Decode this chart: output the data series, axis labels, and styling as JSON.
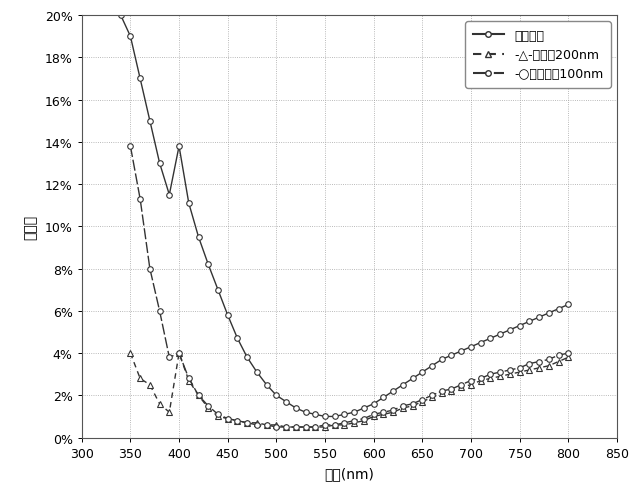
{
  "title": "",
  "xlabel": "波長(nm)",
  "ylabel": "反射率",
  "xlim": [
    300,
    850
  ],
  "ylim": [
    0.0,
    0.2
  ],
  "xticks": [
    300,
    350,
    400,
    450,
    500,
    550,
    600,
    650,
    700,
    750,
    800,
    850
  ],
  "yticks": [
    0.0,
    0.02,
    0.04,
    0.06,
    0.08,
    0.1,
    0.12,
    0.14,
    0.16,
    0.18,
    0.2
  ],
  "background_color": "#ffffff",
  "grid_color": "#999999",
  "series1_color": "#333333",
  "series1_x": [
    340,
    350,
    360,
    370,
    380,
    390,
    400,
    410,
    420,
    430,
    440,
    450,
    460,
    470,
    480,
    490,
    500,
    510,
    520,
    530,
    540,
    550,
    560,
    570,
    580,
    590,
    600,
    610,
    620,
    630,
    640,
    650,
    660,
    670,
    680,
    690,
    700,
    710,
    720,
    730,
    740,
    750,
    760,
    770,
    780,
    790,
    800
  ],
  "series1_y": [
    0.2,
    0.19,
    0.17,
    0.15,
    0.13,
    0.115,
    0.138,
    0.111,
    0.095,
    0.082,
    0.07,
    0.058,
    0.047,
    0.038,
    0.031,
    0.025,
    0.02,
    0.017,
    0.014,
    0.012,
    0.011,
    0.01,
    0.01,
    0.011,
    0.012,
    0.014,
    0.016,
    0.019,
    0.022,
    0.025,
    0.028,
    0.031,
    0.034,
    0.037,
    0.039,
    0.041,
    0.043,
    0.045,
    0.047,
    0.049,
    0.051,
    0.053,
    0.055,
    0.057,
    0.059,
    0.061,
    0.063
  ],
  "series2_color": "#333333",
  "series2_x": [
    350,
    360,
    370,
    380,
    390,
    400,
    410,
    420,
    430,
    440,
    450,
    460,
    470,
    480,
    490,
    500,
    510,
    520,
    530,
    540,
    550,
    560,
    570,
    580,
    590,
    600,
    610,
    620,
    630,
    640,
    650,
    660,
    670,
    680,
    690,
    700,
    710,
    720,
    730,
    740,
    750,
    760,
    770,
    780,
    790,
    800
  ],
  "series2_y": [
    0.04,
    0.028,
    0.025,
    0.016,
    0.012,
    0.04,
    0.027,
    0.02,
    0.014,
    0.01,
    0.009,
    0.008,
    0.007,
    0.007,
    0.006,
    0.006,
    0.005,
    0.005,
    0.005,
    0.005,
    0.005,
    0.006,
    0.006,
    0.007,
    0.008,
    0.01,
    0.011,
    0.012,
    0.014,
    0.015,
    0.017,
    0.019,
    0.021,
    0.022,
    0.024,
    0.025,
    0.027,
    0.028,
    0.029,
    0.03,
    0.031,
    0.032,
    0.033,
    0.034,
    0.036,
    0.038
  ],
  "series3_color": "#333333",
  "series3_x": [
    350,
    360,
    370,
    380,
    390,
    400,
    410,
    420,
    430,
    440,
    450,
    460,
    470,
    480,
    490,
    500,
    510,
    520,
    530,
    540,
    550,
    560,
    570,
    580,
    590,
    600,
    610,
    620,
    630,
    640,
    650,
    660,
    670,
    680,
    690,
    700,
    710,
    720,
    730,
    740,
    750,
    760,
    770,
    780,
    790,
    800
  ],
  "series3_y": [
    0.138,
    0.113,
    0.08,
    0.06,
    0.038,
    0.04,
    0.028,
    0.02,
    0.015,
    0.011,
    0.009,
    0.008,
    0.007,
    0.006,
    0.006,
    0.005,
    0.005,
    0.005,
    0.005,
    0.005,
    0.006,
    0.006,
    0.007,
    0.008,
    0.009,
    0.011,
    0.012,
    0.013,
    0.015,
    0.016,
    0.018,
    0.02,
    0.022,
    0.023,
    0.025,
    0.027,
    0.028,
    0.03,
    0.031,
    0.032,
    0.033,
    0.035,
    0.036,
    0.037,
    0.039,
    0.04
  ],
  "legend_label1": "平面構造",
  "legend_label2": "ピッチ200nm",
  "legend_label3": "ピッチ100nm"
}
